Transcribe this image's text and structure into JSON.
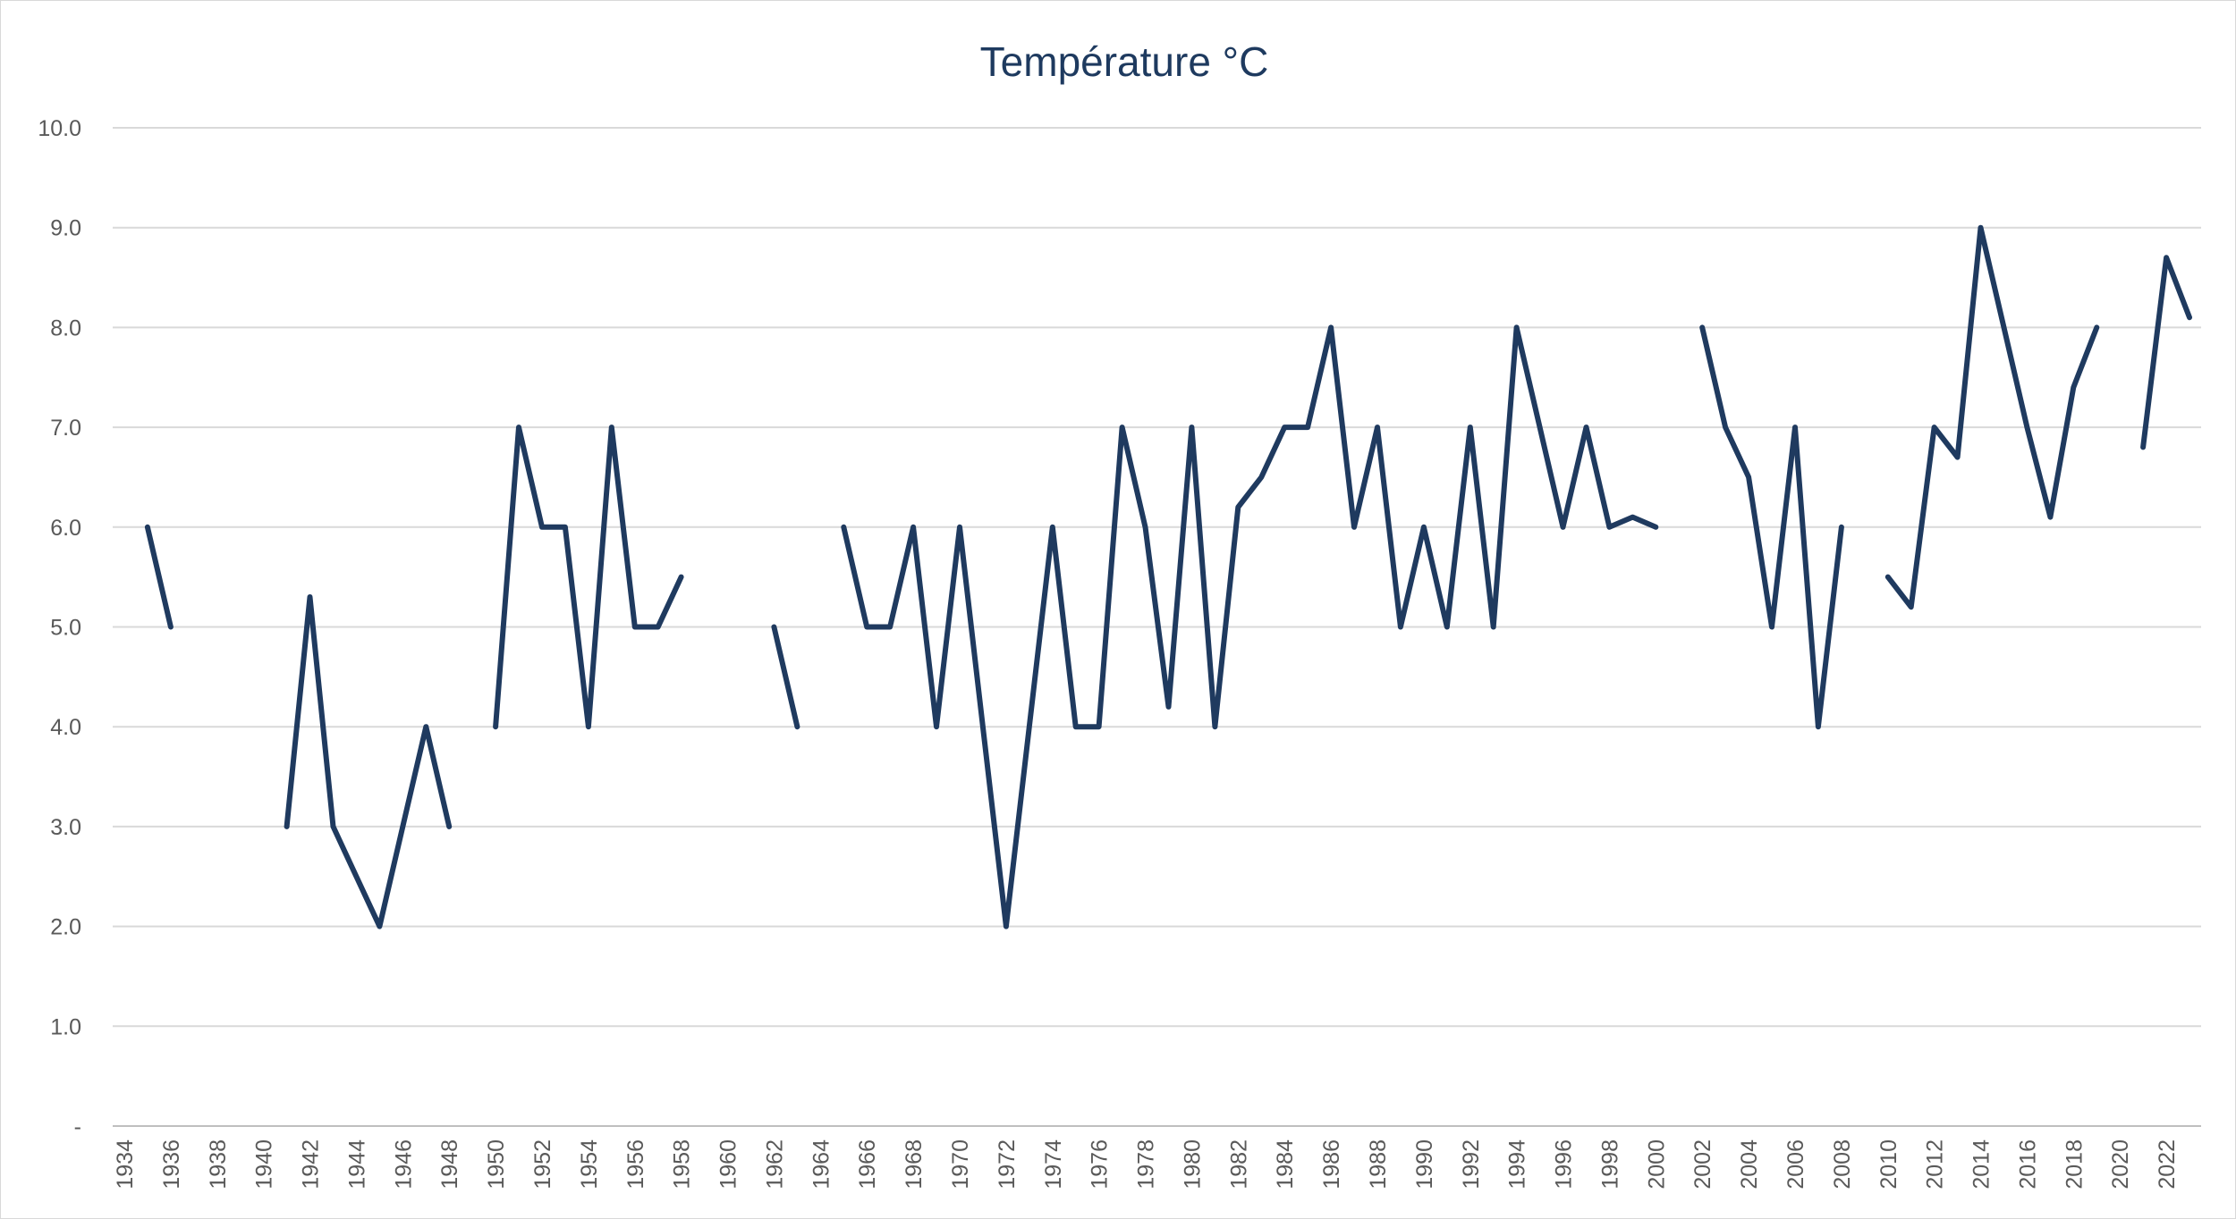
{
  "chart_data": {
    "type": "line",
    "title": "Température  °C",
    "xlabel": "",
    "ylabel": "",
    "ylim": [
      0,
      10
    ],
    "y_ticks": [
      "-",
      "1.0",
      "2.0",
      "3.0",
      "4.0",
      "5.0",
      "6.0",
      "7.0",
      "8.0",
      "9.0",
      "10.0"
    ],
    "x_range": [
      1934,
      2023
    ],
    "x_ticks": [
      "1934",
      "1936",
      "1938",
      "1940",
      "1942",
      "1944",
      "1946",
      "1948",
      "1950",
      "1952",
      "1954",
      "1956",
      "1958",
      "1960",
      "1962",
      "1964",
      "1966",
      "1968",
      "1970",
      "1972",
      "1974",
      "1976",
      "1978",
      "1980",
      "1982",
      "1984",
      "1986",
      "1988",
      "1990",
      "1992",
      "1994",
      "1996",
      "1998",
      "2000",
      "2002",
      "2004",
      "2006",
      "2008",
      "2010",
      "2012",
      "2014",
      "2016",
      "2018",
      "2020",
      "2022"
    ],
    "series": [
      {
        "name": "Température °C",
        "color": "#1f3a5f",
        "x": [
          1934,
          1935,
          1936,
          1937,
          1938,
          1939,
          1940,
          1941,
          1942,
          1943,
          1944,
          1945,
          1946,
          1947,
          1948,
          1949,
          1950,
          1951,
          1952,
          1953,
          1954,
          1955,
          1956,
          1957,
          1958,
          1959,
          1960,
          1961,
          1962,
          1963,
          1964,
          1965,
          1966,
          1967,
          1968,
          1969,
          1970,
          1971,
          1972,
          1973,
          1974,
          1975,
          1976,
          1977,
          1978,
          1979,
          1980,
          1981,
          1982,
          1983,
          1984,
          1985,
          1986,
          1987,
          1988,
          1989,
          1990,
          1991,
          1992,
          1993,
          1994,
          1995,
          1996,
          1997,
          1998,
          1999,
          2000,
          2001,
          2002,
          2003,
          2004,
          2005,
          2006,
          2007,
          2008,
          2009,
          2010,
          2011,
          2012,
          2013,
          2014,
          2015,
          2016,
          2017,
          2018,
          2019,
          2020,
          2021,
          2022,
          2023
        ],
        "values": [
          null,
          6,
          5,
          null,
          null,
          null,
          null,
          3,
          5.3,
          3,
          2.5,
          2,
          3,
          4,
          3,
          null,
          4,
          7,
          6,
          6,
          4,
          7,
          5,
          5,
          5.5,
          null,
          null,
          null,
          5,
          4,
          null,
          6,
          5,
          5,
          6,
          4,
          6,
          4,
          2,
          4,
          6,
          4,
          4,
          7,
          6,
          4.2,
          7,
          4,
          6.2,
          6.5,
          7,
          7,
          8,
          6,
          7,
          5,
          6,
          5,
          7,
          5,
          8,
          7,
          6,
          7,
          6,
          6.1,
          6,
          null,
          8,
          7,
          6.5,
          5,
          7,
          4,
          6,
          null,
          5.5,
          5.2,
          7,
          6.7,
          9,
          8,
          7,
          6.1,
          7.4,
          8,
          null,
          6.8,
          8.7,
          8.1
        ]
      }
    ]
  }
}
